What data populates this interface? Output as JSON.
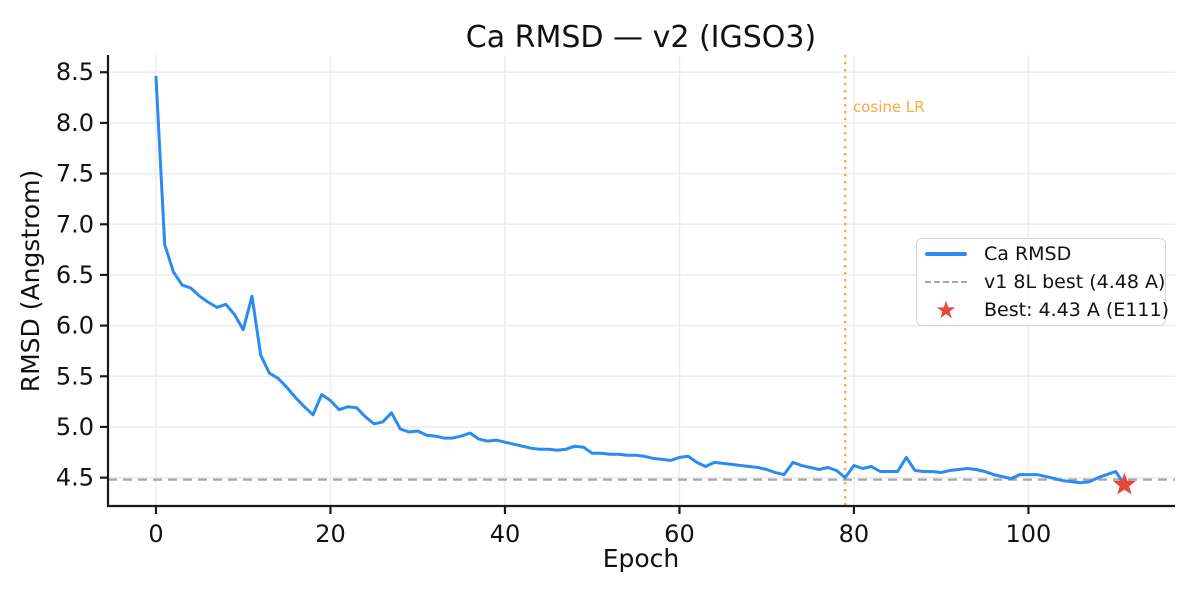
{
  "chart_data": {
    "type": "line",
    "title": "Ca RMSD — v2 (IGSO3)",
    "xlabel": "Epoch",
    "ylabel": "RMSD (Angstrom)",
    "xlim": [
      -5.5,
      116.8
    ],
    "ylim": [
      4.22,
      8.67
    ],
    "xticks": [
      0,
      20,
      40,
      60,
      80,
      100
    ],
    "yticks": [
      4.5,
      5.0,
      5.5,
      6.0,
      6.5,
      7.0,
      7.5,
      8.0,
      8.5
    ],
    "grid": true,
    "colors": {
      "line": "#2a8cf0",
      "baseline": "#a7a7a7",
      "vline": "#fda73c",
      "star": "#e8453c",
      "grid": "#ececec",
      "axis": "#1a1a1a",
      "text": "#111111"
    },
    "series": [
      {
        "name": "Ca RMSD",
        "color": "#2a8cf0",
        "x_start": 0,
        "x_step": 1,
        "x_unit": "epoch",
        "y": [
          8.45,
          6.8,
          6.53,
          6.4,
          6.37,
          6.29,
          6.23,
          6.18,
          6.21,
          6.11,
          5.96,
          6.29,
          5.71,
          5.53,
          5.48,
          5.39,
          5.29,
          5.2,
          5.12,
          5.32,
          5.26,
          5.17,
          5.2,
          5.19,
          5.1,
          5.03,
          5.05,
          5.14,
          4.98,
          4.95,
          4.96,
          4.92,
          4.91,
          4.89,
          4.89,
          4.91,
          4.94,
          4.88,
          4.86,
          4.87,
          4.85,
          4.83,
          4.81,
          4.79,
          4.78,
          4.78,
          4.77,
          4.78,
          4.81,
          4.8,
          4.74,
          4.74,
          4.73,
          4.73,
          4.72,
          4.72,
          4.71,
          4.69,
          4.68,
          4.67,
          4.7,
          4.71,
          4.65,
          4.61,
          4.65,
          4.64,
          4.63,
          4.62,
          4.61,
          4.6,
          4.58,
          4.55,
          4.53,
          4.65,
          4.62,
          4.6,
          4.58,
          4.6,
          4.57,
          4.5,
          4.62,
          4.59,
          4.61,
          4.56,
          4.56,
          4.56,
          4.7,
          4.57,
          4.56,
          4.56,
          4.55,
          4.57,
          4.58,
          4.59,
          4.58,
          4.56,
          4.53,
          4.51,
          4.49,
          4.53,
          4.53,
          4.53,
          4.51,
          4.49,
          4.47,
          4.46,
          4.45,
          4.46,
          4.5,
          4.53,
          4.56,
          4.43
        ]
      }
    ],
    "hline": {
      "label": "v1 8L best (4.48 A)",
      "y": 4.48,
      "color": "#a7a7a7",
      "style": "dashed"
    },
    "vline": {
      "label": "cosine LR",
      "x": 79,
      "color": "#fda73c",
      "style": "dotted"
    },
    "best_point": {
      "label": "Best: 4.43 A (E111)",
      "x": 111,
      "y": 4.43,
      "marker": "star",
      "color": "#e8453c"
    },
    "legend": {
      "position": "center-right",
      "items": [
        {
          "label": "Ca RMSD",
          "glyph": "line",
          "color": "#2a8cf0"
        },
        {
          "label": "v1 8L best (4.48 A)",
          "glyph": "dashed-line",
          "color": "#a7a7a7"
        },
        {
          "label": "Best: 4.43 A (E111)",
          "glyph": "star",
          "color": "#e8453c"
        }
      ]
    }
  }
}
